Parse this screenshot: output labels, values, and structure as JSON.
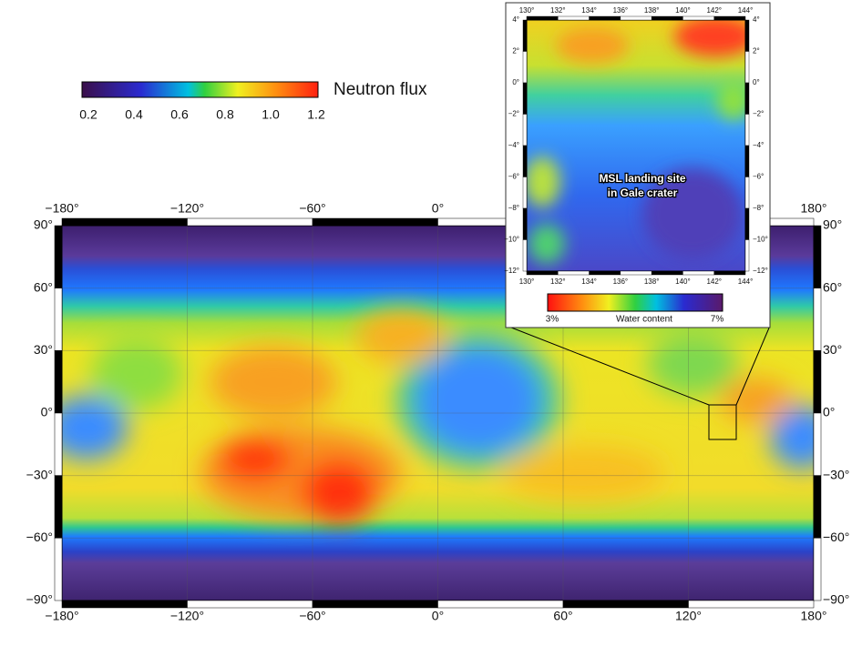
{
  "colorbar": {
    "title": "Neutron flux",
    "ticks": [
      "0.2",
      "0.4",
      "0.6",
      "0.8",
      "1.0",
      "1.2"
    ]
  },
  "map": {
    "x_labels_top": [
      "−180°",
      "−120°",
      "−60°",
      "0°",
      null,
      null,
      "180°"
    ],
    "x_labels_bottom": [
      "−180°",
      "−120°",
      "−60°",
      "0°",
      "60°",
      "120°",
      "180°"
    ],
    "y_labels_left": [
      "90°",
      "60°",
      "30°",
      "0°",
      "−30°",
      "−60°",
      "−90°"
    ],
    "y_labels_right": [
      "90°",
      "60°",
      "30°",
      "0°",
      "−30°",
      "−60°",
      "−90°"
    ]
  },
  "inset": {
    "x_labels_top": [
      "130°",
      "132°",
      "134°",
      "136°",
      "138°",
      "140°",
      "142°",
      "144°"
    ],
    "x_labels_bottom": [
      "130°",
      "132°",
      "134°",
      "136°",
      "138°",
      "140°",
      "142°",
      "144°"
    ],
    "y_labels_left": [
      "4°",
      "2°",
      "0°",
      "−2°",
      "−4°",
      "−6°",
      "−8°",
      "−10°",
      "−12°"
    ],
    "y_labels_right": [
      "4°",
      "2°",
      "0°",
      "−2°",
      "−4°",
      "−6°",
      "−8°",
      "−10°",
      "−12°"
    ],
    "annotation": [
      "MSL landing site",
      "in Gale crater"
    ],
    "colorbar": {
      "min_label": "3%",
      "title": "Water content",
      "max_label": "7%"
    }
  }
}
